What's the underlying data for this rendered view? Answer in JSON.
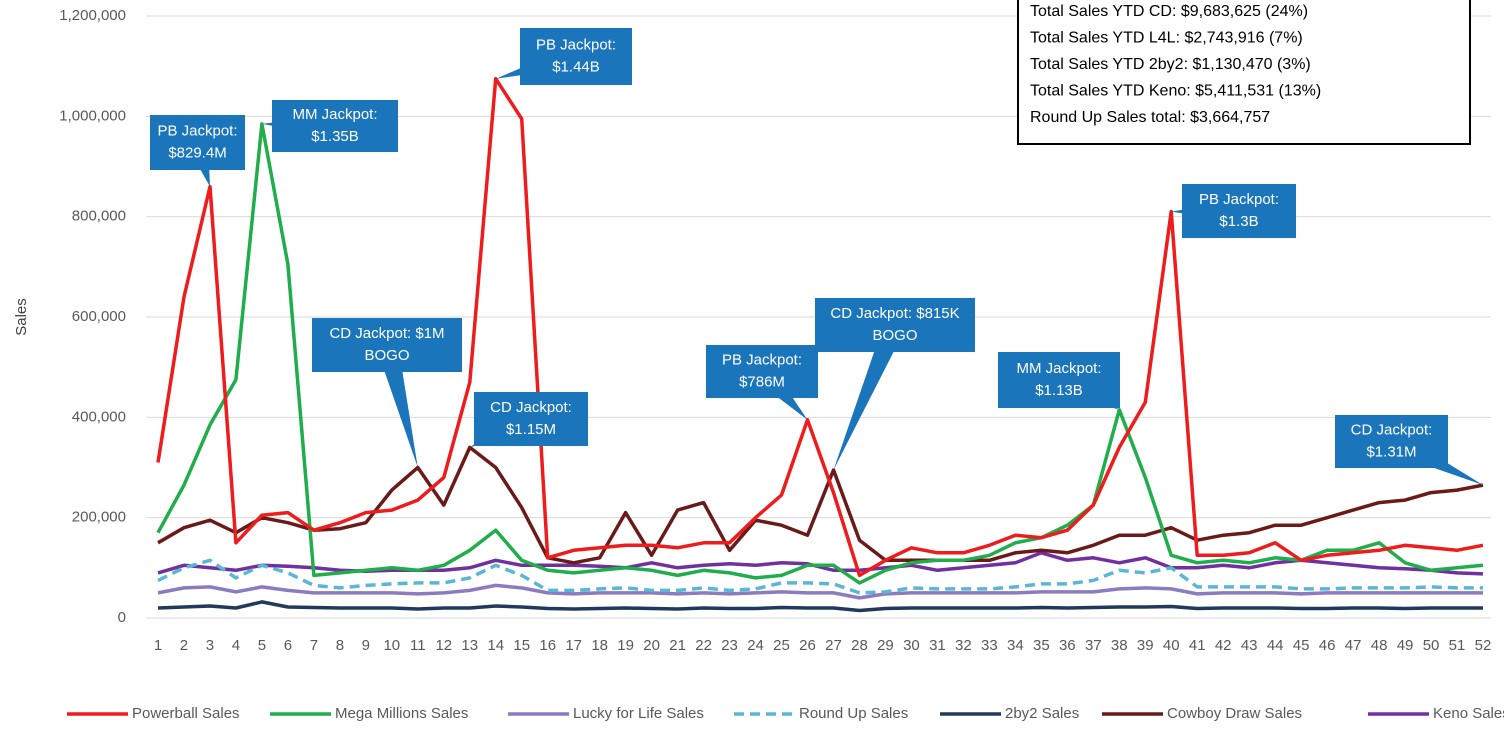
{
  "chart_data": {
    "type": "line",
    "y_label": "Sales",
    "categories": [
      "1",
      "2",
      "3",
      "4",
      "5",
      "6",
      "7",
      "8",
      "9",
      "10",
      "11",
      "12",
      "13",
      "14",
      "15",
      "16",
      "17",
      "18",
      "19",
      "20",
      "21",
      "22",
      "23",
      "24",
      "25",
      "26",
      "27",
      "28",
      "29",
      "30",
      "31",
      "32",
      "33",
      "34",
      "35",
      "36",
      "37",
      "38",
      "39",
      "40",
      "41",
      "42",
      "43",
      "44",
      "45",
      "46",
      "47",
      "48",
      "49",
      "50",
      "51",
      "52"
    ],
    "ylim": [
      0,
      1200000
    ],
    "yticks": [
      0,
      {
        "value": 200000,
        "label": "200,000"
      },
      {
        "value": 400000,
        "label": "400,000"
      },
      {
        "value": 600000,
        "label": "600,000"
      },
      {
        "value": 800000,
        "label": "800,000"
      },
      {
        "value": 1000000,
        "label": "1,000,000"
      },
      {
        "value": 1200000,
        "label": "1,200,000"
      }
    ],
    "grid": true,
    "legend": "bottom",
    "series": [
      {
        "name": "Powerball Sales",
        "color": "#ee1c1c",
        "dash": false,
        "values": [
          310000,
          640000,
          860000,
          150000,
          205000,
          210000,
          175000,
          190000,
          210000,
          215000,
          235000,
          280000,
          470000,
          1075000,
          995000,
          120000,
          135000,
          140000,
          145000,
          145000,
          140000,
          150000,
          150000,
          200000,
          245000,
          395000,
          250000,
          85000,
          115000,
          140000,
          130000,
          130000,
          145000,
          165000,
          160000,
          175000,
          225000,
          340000,
          430000,
          810000,
          125000,
          125000,
          130000,
          150000,
          115000,
          125000,
          130000,
          135000,
          145000,
          140000,
          135000,
          145000
        ]
      },
      {
        "name": "Mega Millions Sales",
        "color": "#1fae4b",
        "dash": false,
        "values": [
          170000,
          265000,
          385000,
          475000,
          985000,
          705000,
          85000,
          90000,
          95000,
          100000,
          95000,
          105000,
          135000,
          175000,
          115000,
          95000,
          90000,
          95000,
          100000,
          95000,
          85000,
          95000,
          90000,
          80000,
          85000,
          105000,
          105000,
          70000,
          95000,
          110000,
          115000,
          115000,
          125000,
          150000,
          160000,
          185000,
          225000,
          415000,
          280000,
          125000,
          110000,
          115000,
          110000,
          120000,
          115000,
          135000,
          135000,
          150000,
          110000,
          95000,
          100000,
          105000
        ]
      },
      {
        "name": "Lucky for Life Sales",
        "color": "#8c7bbf",
        "dash": false,
        "values": [
          50000,
          60000,
          62000,
          52000,
          62000,
          55000,
          50000,
          50000,
          50000,
          50000,
          48000,
          50000,
          55000,
          65000,
          60000,
          50000,
          48000,
          50000,
          50000,
          50000,
          48000,
          50000,
          48000,
          50000,
          52000,
          50000,
          50000,
          40000,
          48000,
          50000,
          50000,
          50000,
          50000,
          50000,
          52000,
          52000,
          52000,
          58000,
          60000,
          58000,
          48000,
          50000,
          50000,
          50000,
          48000,
          50000,
          50000,
          50000,
          50000,
          50000,
          50000,
          50000
        ]
      },
      {
        "name": "Round Up Sales",
        "color": "#5bb6d6",
        "dash": true,
        "values": [
          75000,
          100000,
          115000,
          80000,
          105000,
          90000,
          65000,
          60000,
          65000,
          68000,
          70000,
          70000,
          80000,
          105000,
          85000,
          55000,
          55000,
          58000,
          60000,
          55000,
          55000,
          60000,
          55000,
          58000,
          70000,
          70000,
          68000,
          50000,
          52000,
          60000,
          58000,
          58000,
          58000,
          62000,
          68000,
          68000,
          75000,
          95000,
          90000,
          100000,
          62000,
          62000,
          62000,
          62000,
          58000,
          58000,
          60000,
          60000,
          60000,
          62000,
          60000,
          60000
        ]
      },
      {
        "name": "2by2 Sales",
        "color": "#203a5c",
        "dash": false,
        "values": [
          20000,
          22000,
          24000,
          20000,
          32000,
          22000,
          21000,
          20000,
          20000,
          20000,
          18000,
          20000,
          20000,
          24000,
          22000,
          19000,
          18000,
          19000,
          20000,
          19000,
          18000,
          20000,
          19000,
          19000,
          21000,
          20000,
          20000,
          15000,
          19000,
          20000,
          20000,
          20000,
          20000,
          20000,
          21000,
          20000,
          21000,
          22000,
          22000,
          23000,
          19000,
          20000,
          20000,
          20000,
          19000,
          19000,
          20000,
          20000,
          19000,
          20000,
          20000,
          20000
        ]
      },
      {
        "name": "Cowboy Draw Sales",
        "color": "#6b1a1a",
        "dash": false,
        "values": [
          150000,
          180000,
          195000,
          170000,
          200000,
          190000,
          175000,
          178000,
          190000,
          255000,
          300000,
          225000,
          340000,
          300000,
          220000,
          120000,
          110000,
          120000,
          210000,
          125000,
          215000,
          230000,
          135000,
          195000,
          185000,
          165000,
          295000,
          155000,
          115000,
          115000,
          115000,
          115000,
          115000,
          130000,
          135000,
          130000,
          145000,
          165000,
          165000,
          180000,
          155000,
          165000,
          170000,
          185000,
          185000,
          200000,
          215000,
          230000,
          235000,
          250000,
          255000,
          265000
        ]
      },
      {
        "name": "Keno Sales",
        "color": "#7030a0",
        "dash": false,
        "values": [
          90000,
          105000,
          100000,
          95000,
          105000,
          103000,
          100000,
          95000,
          93000,
          95000,
          95000,
          95000,
          100000,
          115000,
          105000,
          105000,
          105000,
          103000,
          100000,
          110000,
          100000,
          105000,
          108000,
          105000,
          110000,
          108000,
          95000,
          95000,
          100000,
          105000,
          95000,
          100000,
          105000,
          110000,
          130000,
          115000,
          120000,
          110000,
          120000,
          100000,
          100000,
          105000,
          100000,
          110000,
          115000,
          110000,
          105000,
          100000,
          98000,
          95000,
          90000,
          88000
        ]
      }
    ],
    "annotations": [
      {
        "lines": [
          "PB Jackpot:",
          "$829.4M"
        ]
      },
      {
        "lines": [
          "MM Jackpot:",
          "$1.35B"
        ]
      },
      {
        "lines": [
          "PB Jackpot:",
          "$1.44B"
        ]
      },
      {
        "lines": [
          "CD Jackpot: $1M",
          "BOGO"
        ]
      },
      {
        "lines": [
          "CD Jackpot:",
          "$1.15M"
        ]
      },
      {
        "lines": [
          "PB Jackpot:",
          "$786M"
        ]
      },
      {
        "lines": [
          "CD Jackpot: $815K",
          "BOGO"
        ]
      },
      {
        "lines": [
          "MM Jackpot:",
          "$1.13B"
        ]
      },
      {
        "lines": [
          "PB Jackpot:",
          "$1.3B"
        ]
      },
      {
        "lines": [
          "CD Jackpot:",
          "$1.31M"
        ]
      }
    ],
    "info_box": [
      "Total Sales YTD CD: $9,683,625 (24%)",
      "Total Sales YTD L4L: $2,743,916 (7%)",
      "Total Sales YTD 2by2: $1,130,470 (3%)",
      "Total Sales YTD Keno: $5,411,531 (13%)",
      "Round Up Sales total: $3,664,757"
    ]
  }
}
